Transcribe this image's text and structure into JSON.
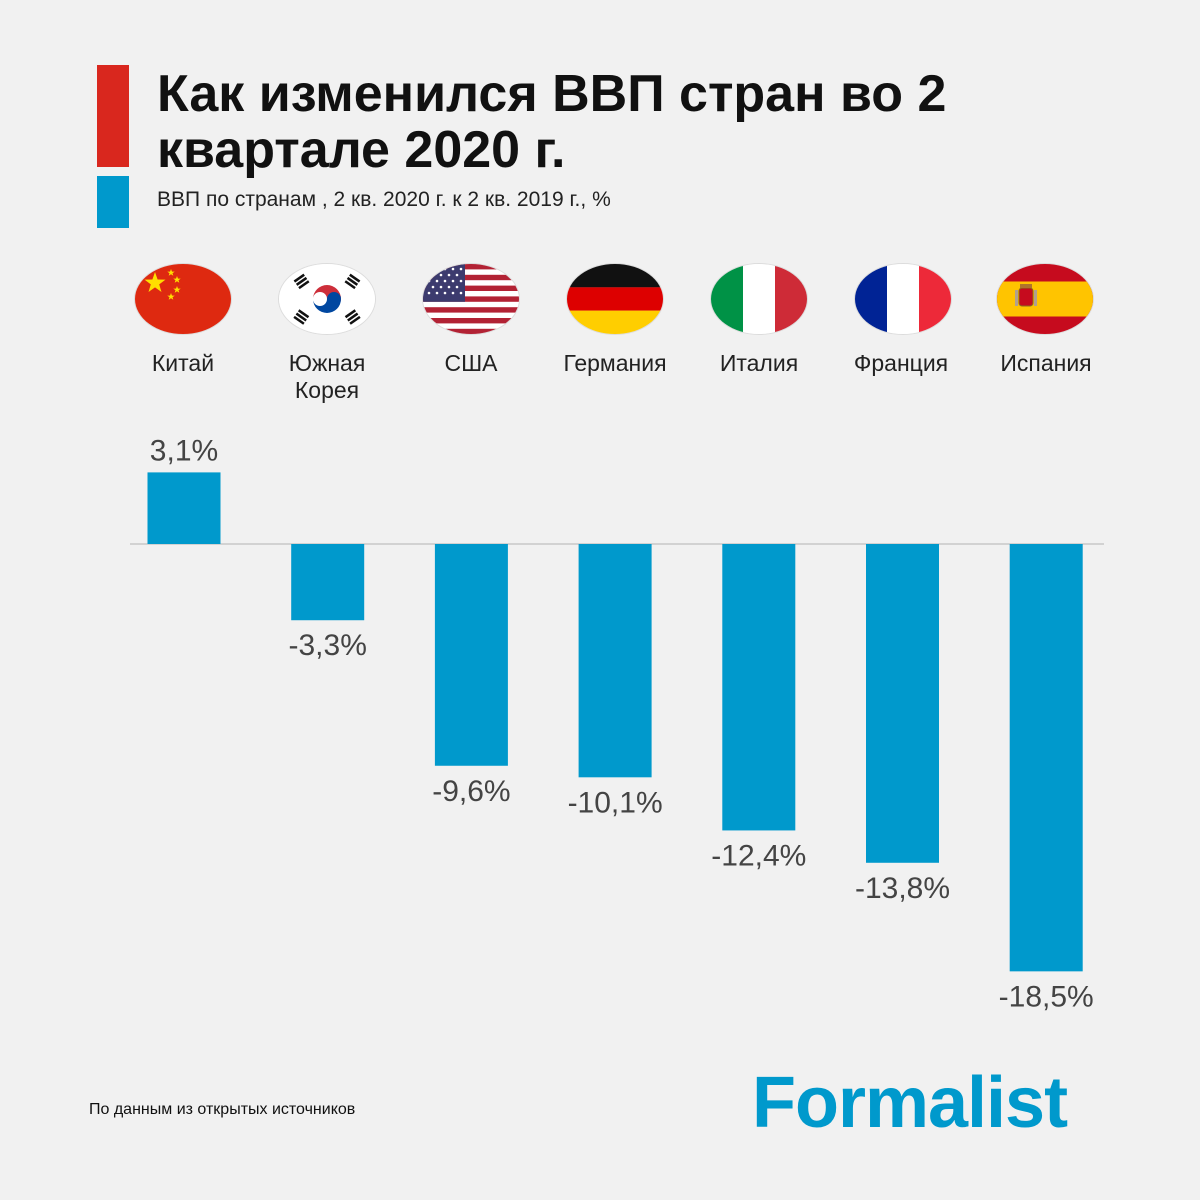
{
  "header": {
    "title": "Как изменился ВВП стран во 2 квартале 2020 г.",
    "subtitle": "ВВП по странам , 2 кв. 2020 г. к 2 кв. 2019 г., %"
  },
  "countries": [
    {
      "name": "Китай",
      "flag": "china-flag-icon"
    },
    {
      "name": "Южная Корея",
      "flag": "south-korea-flag-icon"
    },
    {
      "name": "США",
      "flag": "usa-flag-icon"
    },
    {
      "name": "Германия",
      "flag": "germany-flag-icon"
    },
    {
      "name": "Италия",
      "flag": "italy-flag-icon"
    },
    {
      "name": "Франция",
      "flag": "france-flag-icon"
    },
    {
      "name": "Испания",
      "flag": "spain-flag-icon"
    }
  ],
  "chart_data": {
    "type": "bar",
    "title": "Как изменился ВВП стран во 2 квартале 2020 г.",
    "subtitle": "ВВП по странам , 2 кв. 2020 г. к 2 кв. 2019 г., %",
    "xlabel": "",
    "ylabel": "",
    "categories": [
      "Китай",
      "Южная Корея",
      "США",
      "Германия",
      "Италия",
      "Франция",
      "Испания"
    ],
    "values": [
      3.1,
      -3.3,
      -9.6,
      -10.1,
      -12.4,
      -13.8,
      -18.5
    ],
    "data_labels": [
      "3,1%",
      "-3,3%",
      "-9,6%",
      "-10,1%",
      "-12,4%",
      "-13,8%",
      "-18,5%"
    ],
    "ylim": [
      -18.5,
      3.1
    ],
    "grid": false,
    "bar_color": "#0099cc"
  },
  "footer": {
    "source": "По данным из открытых источников",
    "logo": "Formalist"
  },
  "colors": {
    "accent_red": "#d9271e",
    "accent_blue": "#0099cc",
    "background": "#f1f1f1"
  }
}
